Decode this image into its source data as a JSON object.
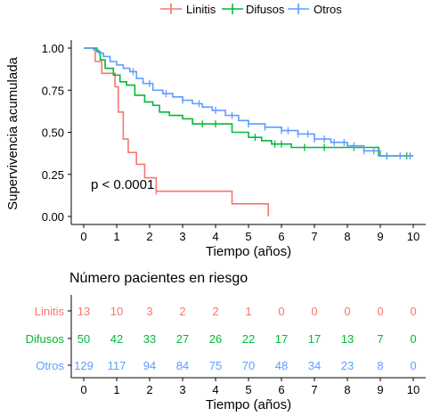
{
  "chart_data": {
    "type": "line",
    "subtype": "kaplan-meier",
    "ylabel": "Supervivencia acumulada",
    "xlabel": "Tiempo (años)",
    "xlim": [
      0,
      10
    ],
    "ylim": [
      0,
      1
    ],
    "x_ticks": [
      "0",
      "1",
      "2",
      "3",
      "4",
      "5",
      "6",
      "7",
      "8",
      "9",
      "10"
    ],
    "y_ticks": [
      "0.00",
      "0.25",
      "0.50",
      "0.75",
      "1.00"
    ],
    "grid": false,
    "legend_position": "top",
    "annotation": "p < 0.0001",
    "series": [
      {
        "name": "Linitis",
        "color": "#F8766D",
        "points": [
          [
            0,
            1.0
          ],
          [
            0.35,
            0.92
          ],
          [
            0.55,
            0.85
          ],
          [
            0.95,
            0.77
          ],
          [
            1.05,
            0.62
          ],
          [
            1.2,
            0.46
          ],
          [
            1.35,
            0.38
          ],
          [
            1.6,
            0.31
          ],
          [
            1.85,
            0.23
          ],
          [
            2.2,
            0.15
          ],
          [
            4.5,
            0.075
          ],
          [
            5.6,
            0.0
          ]
        ],
        "end_x": 5.6,
        "censor_x": [
          2.2
        ]
      },
      {
        "name": "Difusos",
        "color": "#00BA38",
        "points": [
          [
            0,
            1.0
          ],
          [
            0.4,
            0.98
          ],
          [
            0.5,
            0.93
          ],
          [
            0.65,
            0.88
          ],
          [
            0.9,
            0.84
          ],
          [
            1.1,
            0.8
          ],
          [
            1.3,
            0.78
          ],
          [
            1.55,
            0.72
          ],
          [
            1.85,
            0.68
          ],
          [
            2.1,
            0.66
          ],
          [
            2.3,
            0.62
          ],
          [
            2.6,
            0.6
          ],
          [
            3.0,
            0.58
          ],
          [
            3.3,
            0.55
          ],
          [
            4.5,
            0.5
          ],
          [
            5.0,
            0.47
          ],
          [
            5.4,
            0.45
          ],
          [
            5.7,
            0.43
          ],
          [
            6.3,
            0.41
          ],
          [
            7.9,
            0.41
          ],
          [
            8.95,
            0.36
          ]
        ],
        "end_x": 10.0,
        "censor_x": [
          3.6,
          4.0,
          5.2,
          5.8,
          6.0,
          6.7,
          7.3,
          8.2,
          9.2,
          9.8
        ]
      },
      {
        "name": "Otros",
        "color": "#619CFF",
        "points": [
          [
            0,
            1.0
          ],
          [
            0.3,
            0.99
          ],
          [
            0.45,
            0.97
          ],
          [
            0.6,
            0.95
          ],
          [
            0.8,
            0.92
          ],
          [
            1.0,
            0.9
          ],
          [
            1.2,
            0.88
          ],
          [
            1.4,
            0.86
          ],
          [
            1.6,
            0.82
          ],
          [
            1.8,
            0.79
          ],
          [
            2.1,
            0.75
          ],
          [
            2.4,
            0.73
          ],
          [
            2.7,
            0.71
          ],
          [
            3.0,
            0.69
          ],
          [
            3.3,
            0.67
          ],
          [
            3.6,
            0.65
          ],
          [
            3.9,
            0.63
          ],
          [
            4.3,
            0.6
          ],
          [
            4.7,
            0.57
          ],
          [
            5.0,
            0.55
          ],
          [
            5.5,
            0.53
          ],
          [
            6.0,
            0.51
          ],
          [
            6.5,
            0.49
          ],
          [
            7.0,
            0.46
          ],
          [
            7.5,
            0.44
          ],
          [
            8.0,
            0.42
          ],
          [
            8.5,
            0.39
          ],
          [
            9.0,
            0.36
          ]
        ],
        "end_x": 10.0,
        "censor_x": [
          1.5,
          2.0,
          2.5,
          3.0,
          3.5,
          4.0,
          4.5,
          5.0,
          5.5,
          6.0,
          6.2,
          6.5,
          6.8,
          7.0,
          7.3,
          7.6,
          7.9,
          8.2,
          8.5,
          8.8,
          9.2,
          9.6,
          9.9
        ]
      }
    ]
  },
  "risk_table": {
    "title": "Número pacientes en riesgo",
    "xlabel": "Tiempo (años)",
    "x_ticks": [
      "0",
      "1",
      "2",
      "3",
      "4",
      "5",
      "6",
      "7",
      "8",
      "9",
      "10"
    ],
    "rows": [
      {
        "name": "Linitis",
        "color": "#F8766D",
        "values": [
          "13",
          "10",
          "3",
          "2",
          "2",
          "1",
          "0",
          "0",
          "0",
          "0",
          "0"
        ]
      },
      {
        "name": "Difusos",
        "color": "#00BA38",
        "values": [
          "50",
          "42",
          "33",
          "27",
          "26",
          "22",
          "17",
          "17",
          "13",
          "7",
          "0"
        ]
      },
      {
        "name": "Otros",
        "color": "#619CFF",
        "values": [
          "129",
          "117",
          "94",
          "84",
          "75",
          "70",
          "48",
          "34",
          "23",
          "8",
          "0"
        ]
      }
    ]
  }
}
